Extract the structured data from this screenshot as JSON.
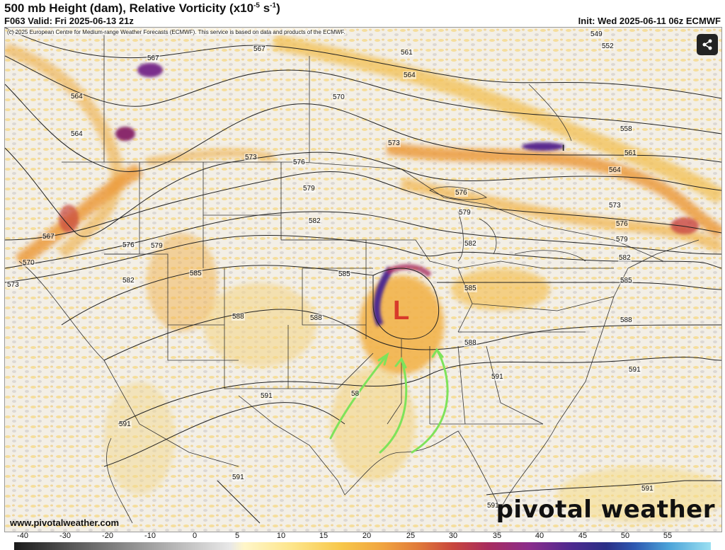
{
  "header": {
    "title_main": "500 mb Height (dam), Relative Vorticity (x10",
    "title_exp": "-5",
    "title_unit": " s",
    "title_unit_exp": "-1",
    "title_close": ")",
    "valid": "F063 Valid: Fri 2025-06-13 21z",
    "init": "Init: Wed 2025-06-11 06z ECMWF"
  },
  "copyright": "(c) 2025 European Centre for Medium-range Weather Forecasts (ECMWF). This service is based on data and products of the ECMWF.",
  "contour_labels": [
    "567",
    "567",
    "564",
    "564",
    "561",
    "564",
    "570",
    "573",
    "576",
    "579",
    "582",
    "585",
    "588",
    "591",
    "549",
    "552",
    "558",
    "561",
    "564",
    "573",
    "576",
    "579",
    "582",
    "585",
    "588",
    "591",
    "570",
    "573",
    "567",
    "576",
    "579",
    "582",
    "585",
    "588",
    "591",
    "591",
    "591",
    "591",
    "591",
    "573",
    "576",
    "579",
    "582",
    "585",
    "588",
    "58",
    "591"
  ],
  "low_marker": "L",
  "footer": {
    "url": "www.pivotalweather.com",
    "brand": "pivotal weather"
  },
  "colorbar": {
    "ticks": [
      "-40",
      "-30",
      "-20",
      "-10",
      "0",
      "5",
      "10",
      "15",
      "20",
      "25",
      "30",
      "35",
      "40",
      "45",
      "50",
      "55"
    ]
  },
  "icons": {
    "share": "share-icon"
  },
  "colors": {
    "vorticity_yellow": "#f6d77a",
    "vorticity_orange": "#e98f3a",
    "vorticity_purple": "#6a2a8f",
    "annotation_arrows": "#7ee35a",
    "low_marker": "#d83a2a"
  }
}
